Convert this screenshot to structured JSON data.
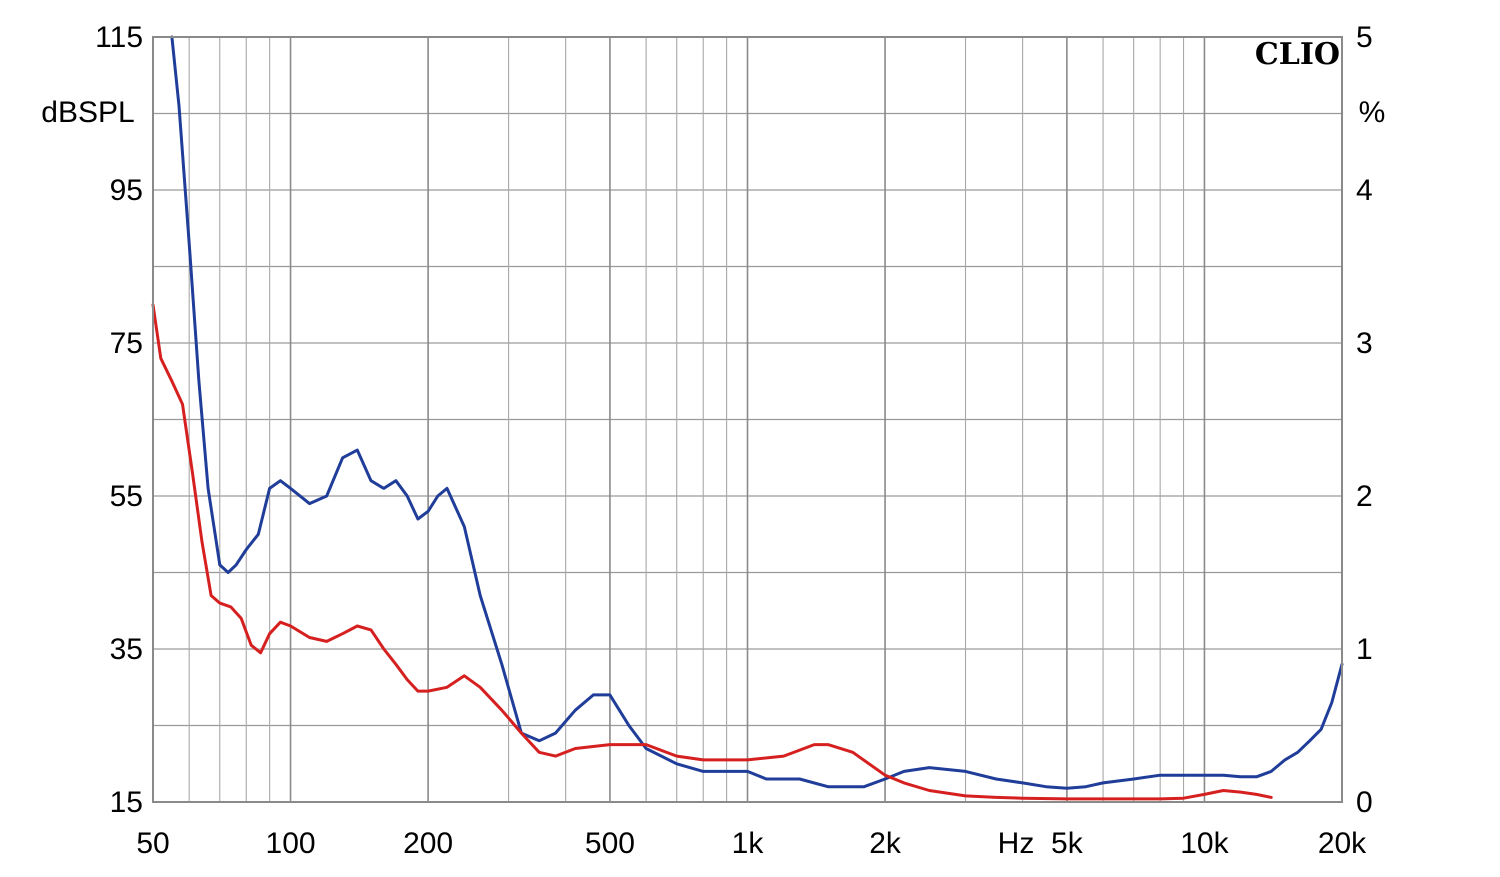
{
  "chart_data": {
    "type": "line",
    "title": "",
    "brand_label": "CLIO",
    "x_unit_label": "Hz",
    "x_scale": "log",
    "xlim": [
      50,
      20000
    ],
    "x_ticks": [
      {
        "value": 50,
        "label": "50"
      },
      {
        "value": 100,
        "label": "100"
      },
      {
        "value": 200,
        "label": "200"
      },
      {
        "value": 500,
        "label": "500"
      },
      {
        "value": 1000,
        "label": "1k"
      },
      {
        "value": 2000,
        "label": "2k"
      },
      {
        "value": 5000,
        "label": "5k"
      },
      {
        "value": 10000,
        "label": "10k"
      },
      {
        "value": 20000,
        "label": "20k"
      }
    ],
    "y_left": {
      "label": "dBSPL",
      "ylim": [
        15,
        115
      ],
      "ticks": [
        {
          "value": 115,
          "label": "115"
        },
        {
          "value": 95,
          "label": "95"
        },
        {
          "value": 75,
          "label": "75"
        },
        {
          "value": 55,
          "label": "55"
        },
        {
          "value": 35,
          "label": "35"
        },
        {
          "value": 15,
          "label": "15"
        }
      ]
    },
    "y_right": {
      "label": "%",
      "ylim": [
        0,
        5
      ],
      "ticks": [
        {
          "value": 5,
          "label": "5"
        },
        {
          "value": 4,
          "label": "4"
        },
        {
          "value": 3,
          "label": "3"
        },
        {
          "value": 2,
          "label": "2"
        },
        {
          "value": 1,
          "label": "1"
        },
        {
          "value": 0,
          "label": "0"
        }
      ]
    },
    "grid": true,
    "series": [
      {
        "color": "#1f3d99",
        "x": [
          55,
          57,
          60,
          63,
          66,
          70,
          73,
          76,
          80,
          85,
          90,
          95,
          100,
          110,
          120,
          130,
          140,
          150,
          160,
          170,
          180,
          190,
          200,
          210,
          220,
          240,
          260,
          290,
          320,
          350,
          380,
          420,
          460,
          500,
          550,
          600,
          700,
          800,
          900,
          1000,
          1100,
          1300,
          1500,
          1800,
          2000,
          2200,
          2500,
          3000,
          3500,
          4000,
          4500,
          5000,
          5500,
          6000,
          7000,
          8000,
          9000,
          10000,
          11000,
          12000,
          13000,
          14000,
          15000,
          16000,
          17000,
          18000,
          19000,
          20000
        ],
        "y": [
          115,
          106,
          88,
          70,
          56,
          46,
          45,
          46,
          48,
          50,
          56,
          57,
          56,
          54,
          55,
          60,
          61,
          57,
          56,
          57,
          55,
          52,
          53,
          55,
          56,
          51,
          42,
          33,
          24,
          23,
          24,
          27,
          29,
          29,
          25,
          22,
          20,
          19,
          19,
          19,
          18,
          18,
          17,
          17,
          18,
          19,
          19.5,
          19,
          18,
          17.5,
          17,
          16.8,
          17,
          17.5,
          18,
          18.5,
          18.5,
          18.5,
          18.5,
          18.3,
          18.3,
          19,
          20.5,
          21.5,
          23,
          24.5,
          28,
          33
        ]
      },
      {
        "color": "#d62020",
        "x": [
          50,
          52,
          55,
          58,
          61,
          64,
          67,
          70,
          74,
          78,
          82,
          86,
          90,
          95,
          100,
          110,
          120,
          130,
          140,
          150,
          160,
          170,
          180,
          190,
          200,
          220,
          240,
          260,
          290,
          320,
          350,
          380,
          420,
          500,
          600,
          700,
          800,
          900,
          1000,
          1200,
          1400,
          1500,
          1700,
          2000,
          2200,
          2500,
          3000,
          3500,
          4000,
          5000,
          6000,
          7000,
          8000,
          9000,
          10000,
          11000,
          12000,
          13000,
          14000
        ],
        "y": [
          80,
          73,
          70,
          67,
          58,
          49,
          42,
          41,
          40.5,
          39,
          35.5,
          34.5,
          37,
          38.5,
          38,
          36.5,
          36,
          37,
          38,
          37.5,
          35,
          33,
          31,
          29.5,
          29.5,
          30,
          31.5,
          30,
          27,
          24,
          21.5,
          21,
          22,
          22.5,
          22.5,
          21,
          20.5,
          20.5,
          20.5,
          21,
          22.5,
          22.5,
          21.5,
          18.5,
          17.5,
          16.5,
          15.8,
          15.6,
          15.5,
          15.4,
          15.4,
          15.4,
          15.4,
          15.5,
          16,
          16.5,
          16.3,
          16,
          15.6
        ]
      }
    ]
  }
}
